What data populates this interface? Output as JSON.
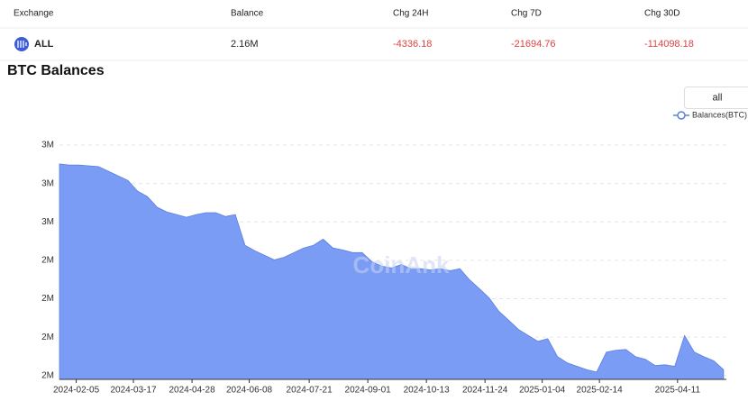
{
  "table": {
    "columns": [
      "Exchange",
      "Balance",
      "Chg 24H",
      "Chg 7D",
      "Chg 30D"
    ],
    "rows": [
      [
        "ALL",
        "2.16M",
        "-4336.18",
        "-21694.76",
        "-114098.18"
      ]
    ]
  },
  "chart_data": {
    "type": "area",
    "title": "BTC Balances",
    "range_button": "all",
    "watermark": "CoinAnk",
    "legend": "top-right",
    "grid": true,
    "x": [
      "2024-01-24",
      "2024-01-31",
      "2024-02-07",
      "2024-02-14",
      "2024-02-21",
      "2024-02-28",
      "2024-03-06",
      "2024-03-13",
      "2024-03-20",
      "2024-03-27",
      "2024-04-03",
      "2024-04-10",
      "2024-04-17",
      "2024-04-24",
      "2024-05-01",
      "2024-05-08",
      "2024-05-15",
      "2024-05-22",
      "2024-05-29",
      "2024-06-05",
      "2024-06-12",
      "2024-06-19",
      "2024-06-26",
      "2024-07-03",
      "2024-07-10",
      "2024-07-17",
      "2024-07-24",
      "2024-07-31",
      "2024-08-07",
      "2024-08-14",
      "2024-08-21",
      "2024-08-28",
      "2024-09-04",
      "2024-09-11",
      "2024-09-18",
      "2024-09-25",
      "2024-10-02",
      "2024-10-09",
      "2024-10-16",
      "2024-10-23",
      "2024-10-30",
      "2024-11-06",
      "2024-11-13",
      "2024-11-20",
      "2024-11-27",
      "2024-12-04",
      "2024-12-11",
      "2024-12-18",
      "2024-12-25",
      "2025-01-01",
      "2025-01-08",
      "2025-01-15",
      "2025-01-22",
      "2025-01-29",
      "2025-02-05",
      "2025-02-12",
      "2025-02-19",
      "2025-02-26",
      "2025-03-05",
      "2025-03-12",
      "2025-03-19",
      "2025-03-26",
      "2025-04-02",
      "2025-04-09",
      "2025-04-16",
      "2025-04-23",
      "2025-04-30",
      "2025-05-07",
      "2025-05-14"
    ],
    "series": [
      {
        "name": "Balances(BTC)",
        "color": "#7b9cf4",
        "line_color": "#5b7fe0",
        "values": [
          2651000,
          2648000,
          2648000,
          2646000,
          2644000,
          2632000,
          2620000,
          2608000,
          2580000,
          2566000,
          2538000,
          2526000,
          2519000,
          2512000,
          2519000,
          2524000,
          2524000,
          2514000,
          2519000,
          2439000,
          2425000,
          2413000,
          2401000,
          2408000,
          2420000,
          2432000,
          2439000,
          2455000,
          2432000,
          2427000,
          2420000,
          2420000,
          2396000,
          2385000,
          2380000,
          2389000,
          2378000,
          2378000,
          2375000,
          2378000,
          2373000,
          2378000,
          2349000,
          2326000,
          2302000,
          2267000,
          2244000,
          2220000,
          2204000,
          2189000,
          2196000,
          2149000,
          2133000,
          2124000,
          2115000,
          2109000,
          2161000,
          2166000,
          2168000,
          2149000,
          2142000,
          2126000,
          2128000,
          2124000,
          2204000,
          2161000,
          2149000,
          2138000,
          2115000
        ]
      }
    ],
    "xlim": [
      "2024-01-24",
      "2025-05-16"
    ],
    "xticks": [
      "2024-02-05",
      "2024-03-17",
      "2024-04-28",
      "2024-06-08",
      "2024-07-21",
      "2024-09-01",
      "2024-10-13",
      "2024-11-24",
      "2025-01-04",
      "2025-02-14",
      "2025-04-11"
    ],
    "ylim": [
      2090000,
      2700000
    ],
    "yticks": [
      {
        "value": 2100000,
        "label": "2M"
      },
      {
        "value": 2200000,
        "label": "2M"
      },
      {
        "value": 2300000,
        "label": "2M"
      },
      {
        "value": 2400000,
        "label": "2M"
      },
      {
        "value": 2500000,
        "label": "3M"
      },
      {
        "value": 2600000,
        "label": "3M"
      },
      {
        "value": 2700000,
        "label": "3M"
      }
    ]
  }
}
